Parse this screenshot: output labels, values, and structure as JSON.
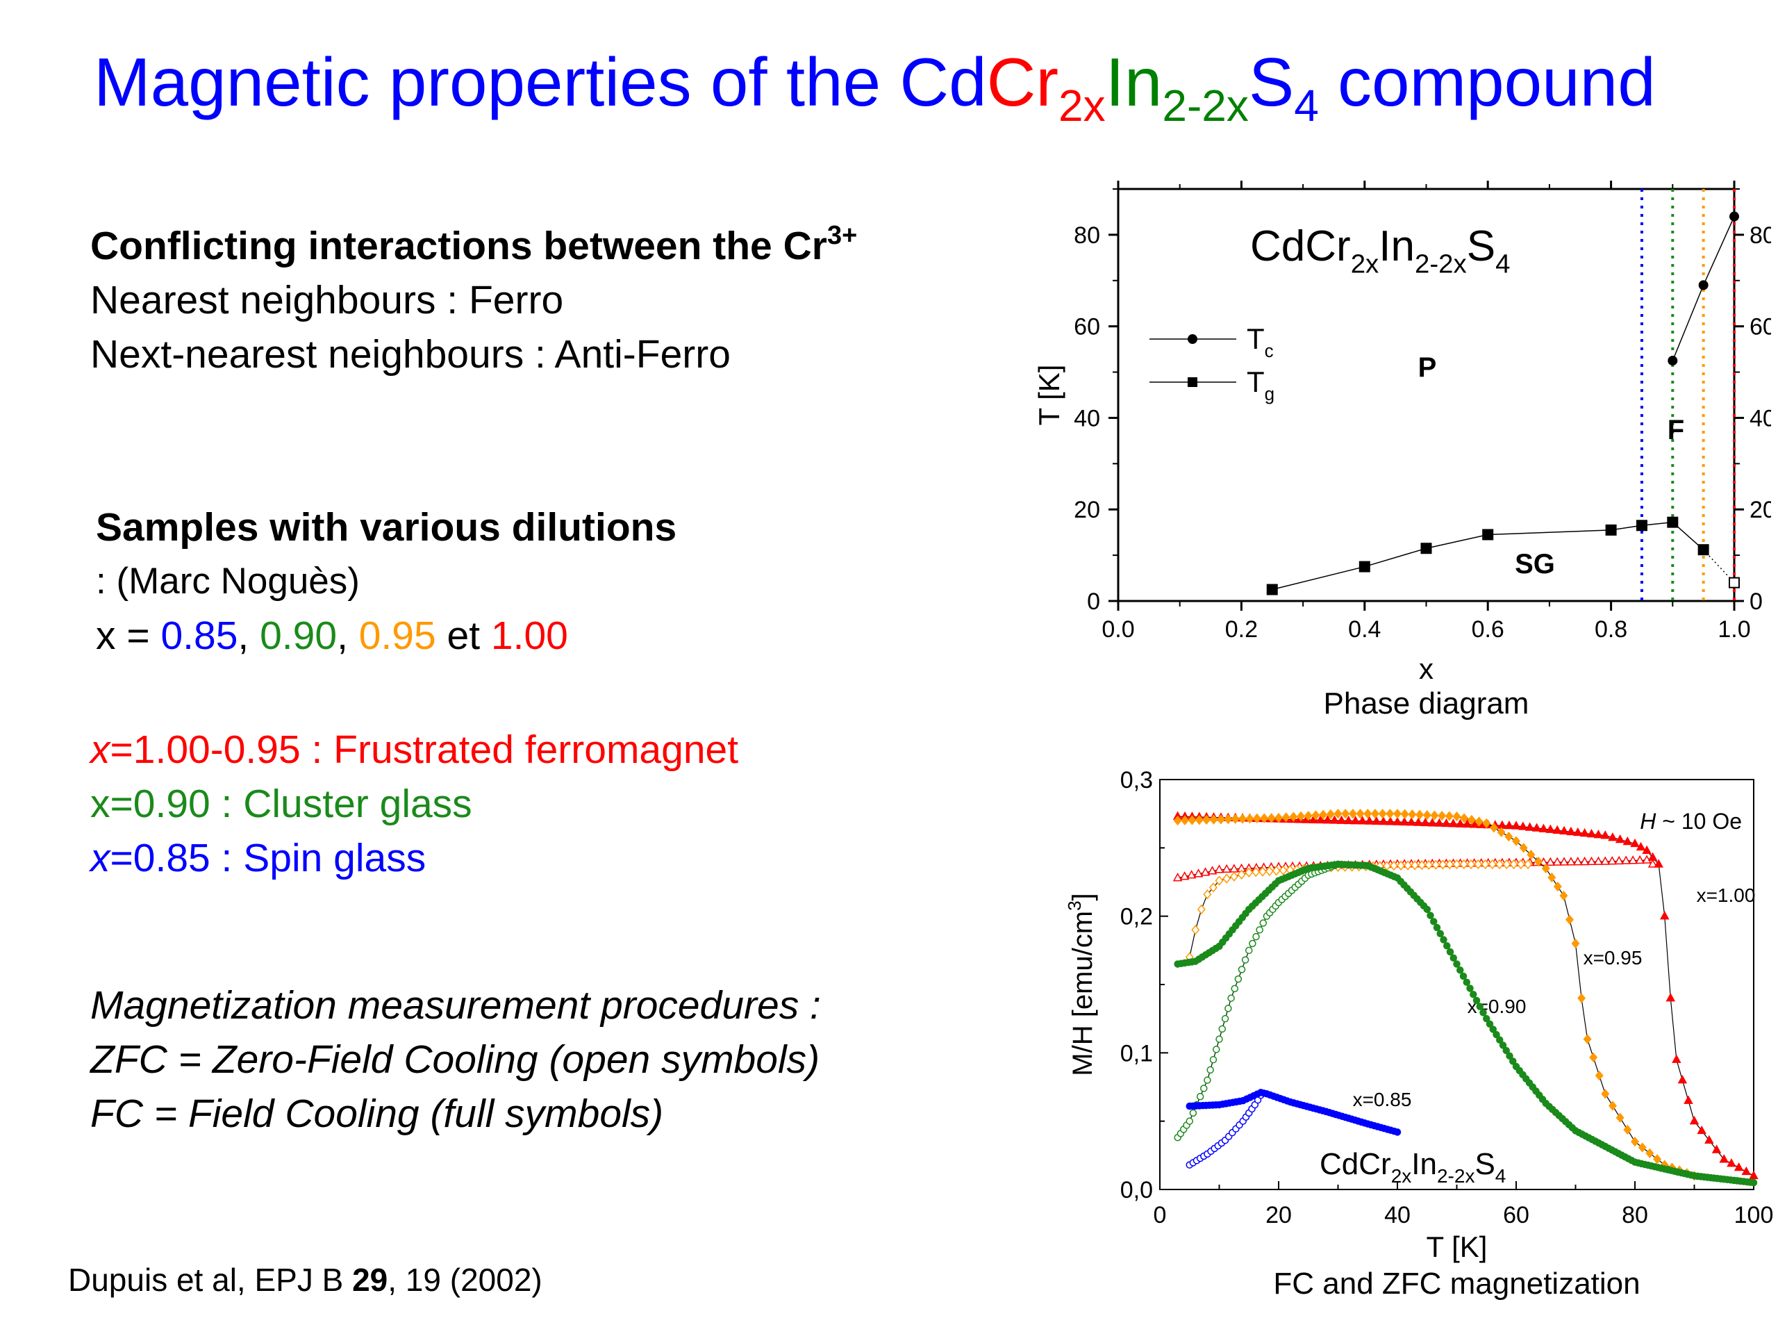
{
  "title": {
    "prefix": "Magnetic properties of the ",
    "cd": "Cd",
    "cr": "Cr",
    "cr_sub": "2x",
    "in": "In",
    "in_sub": "2-2x",
    "s": "S",
    "s_sub": "4",
    "suffix": " compound"
  },
  "left": {
    "conflict_heading": "Conflicting interactions between the Cr",
    "conflict_sup": "3+",
    "nn": "Nearest neighbours : Ferro",
    "nnn": "Next-nearest neighbours : Anti-Ferro",
    "samples_heading": "Samples with various dilutions",
    "samples_author": ": (Marc Noguès)",
    "x_prefix": "x = ",
    "x_values": [
      "0.85",
      "0.90",
      "0.95",
      "1.00"
    ],
    "x_sep": ", ",
    "x_et": " et ",
    "line_frustrated_var": "x",
    "line_frustrated": "=1.00-0.95 :  Frustrated ferromagnet",
    "line_cluster": "x=0.90 : Cluster glass",
    "line_spin_var": "x",
    "line_spin": "=0.85 : Spin glass",
    "proc_heading": "Magnetization measurement procedures :",
    "proc_zfc": "ZFC = Zero-Field Cooling (open symbols)",
    "proc_fc": "FC = Field Cooling (full symbols)",
    "ref_prefix": "Dupuis et al, EPJ B ",
    "ref_vol": "29",
    "ref_suffix": ", 19 (2002)"
  },
  "colors": {
    "x085": "#0000ff",
    "x090": "#1a8a1a",
    "x095": "#ff9900",
    "x100": "#ff0000"
  },
  "chart_data": [
    {
      "type": "line",
      "caption": "Phase diagram",
      "xlabel": "x",
      "ylabel": "T [K]",
      "xlim": [
        0.0,
        1.0
      ],
      "ylim": [
        0,
        90
      ],
      "xticks": [
        "0.0",
        "0.2",
        "0.4",
        "0.6",
        "0.8",
        "1.0"
      ],
      "yticks": [
        "0",
        "20",
        "40",
        "60",
        "80"
      ],
      "inner_title": {
        "base": "CdCr",
        "sub1": "2x",
        "mid": "In",
        "sub2": "2-2x",
        "end": "S",
        "sub3": "4"
      },
      "legend": [
        {
          "name": "T",
          "sub": "c",
          "marker": "circle"
        },
        {
          "name": "T",
          "sub": "g",
          "marker": "square"
        }
      ],
      "region_labels": [
        "P",
        "F",
        "SG"
      ],
      "series": [
        {
          "name": "Tc",
          "x": [
            0.9,
            0.95,
            1.0
          ],
          "y": [
            52.5,
            69,
            84
          ]
        },
        {
          "name": "Tg",
          "x": [
            0.25,
            0.4,
            0.5,
            0.6,
            0.8,
            0.85,
            0.9,
            0.95,
            1.0
          ],
          "y": [
            2.5,
            7.5,
            11.5,
            14.5,
            15.5,
            16.5,
            17.2,
            11.2,
            4
          ]
        }
      ],
      "vlines": [
        0.85,
        0.9,
        0.95,
        1.0
      ]
    },
    {
      "type": "scatter",
      "caption": "FC and ZFC magnetization",
      "xlabel": "T [K]",
      "ylabel": "M/H [emu/cm",
      "ylabel_sup": "3",
      "ylabel_end": "]",
      "xlim": [
        0,
        100
      ],
      "ylim": [
        0,
        0.3
      ],
      "xticks": [
        "0",
        "20",
        "40",
        "60",
        "80",
        "100"
      ],
      "yticks": [
        "0,0",
        "0,1",
        "0,2",
        "0,3"
      ],
      "field_label": {
        "var": "H",
        "text": " ~ 10 Oe"
      },
      "inner_title": {
        "base": "CdCr",
        "sub1": "2x",
        "mid": "In",
        "sub2": "2-2x",
        "end": "S",
        "sub3": "4"
      },
      "series_labels": [
        "x=1.00",
        "x=0.95",
        "x=0.90",
        "x=0.85"
      ],
      "series": [
        {
          "name": "x=1.00",
          "fc": [
            [
              3,
              0.273
            ],
            [
              20,
              0.271
            ],
            [
              40,
              0.269
            ],
            [
              60,
              0.266
            ],
            [
              75,
              0.259
            ],
            [
              80,
              0.253
            ],
            [
              82,
              0.248
            ],
            [
              84,
              0.238
            ],
            [
              85,
              0.2
            ],
            [
              86,
              0.14
            ],
            [
              87,
              0.095
            ],
            [
              90,
              0.05
            ],
            [
              95,
              0.022
            ],
            [
              100,
              0.01
            ]
          ],
          "zfc": [
            [
              3,
              0.228
            ],
            [
              10,
              0.234
            ],
            [
              20,
              0.236
            ],
            [
              40,
              0.238
            ],
            [
              60,
              0.239
            ],
            [
              75,
              0.24
            ],
            [
              82,
              0.241
            ],
            [
              83,
              0.238
            ]
          ]
        },
        {
          "name": "x=0.95",
          "fc": [
            [
              3,
              0.27
            ],
            [
              20,
              0.272
            ],
            [
              30,
              0.275
            ],
            [
              40,
              0.275
            ],
            [
              50,
              0.273
            ],
            [
              55,
              0.268
            ],
            [
              60,
              0.255
            ],
            [
              65,
              0.235
            ],
            [
              68,
              0.215
            ],
            [
              70,
              0.18
            ],
            [
              71,
              0.14
            ],
            [
              72,
              0.11
            ],
            [
              75,
              0.07
            ],
            [
              80,
              0.035
            ],
            [
              85,
              0.018
            ],
            [
              90,
              0.01
            ]
          ],
          "zfc": [
            [
              5,
              0.17
            ],
            [
              6,
              0.19
            ],
            [
              7,
              0.205
            ],
            [
              8,
              0.216
            ],
            [
              10,
              0.226
            ],
            [
              15,
              0.232
            ],
            [
              30,
              0.236
            ],
            [
              50,
              0.238
            ],
            [
              62,
              0.238
            ]
          ]
        },
        {
          "name": "x=0.90",
          "fc": [
            [
              3,
              0.165
            ],
            [
              6,
              0.167
            ],
            [
              10,
              0.178
            ],
            [
              15,
              0.205
            ],
            [
              20,
              0.226
            ],
            [
              25,
              0.235
            ],
            [
              30,
              0.238
            ],
            [
              35,
              0.237
            ],
            [
              40,
              0.228
            ],
            [
              45,
              0.205
            ],
            [
              50,
              0.165
            ],
            [
              55,
              0.125
            ],
            [
              60,
              0.09
            ],
            [
              65,
              0.063
            ],
            [
              70,
              0.043
            ],
            [
              80,
              0.02
            ],
            [
              90,
              0.01
            ],
            [
              100,
              0.005
            ]
          ],
          "zfc": [
            [
              3,
              0.038
            ],
            [
              5,
              0.05
            ],
            [
              8,
              0.08
            ],
            [
              10,
              0.11
            ],
            [
              12,
              0.14
            ],
            [
              15,
              0.175
            ],
            [
              18,
              0.2
            ],
            [
              20,
              0.21
            ],
            [
              25,
              0.23
            ],
            [
              30,
              0.238
            ]
          ]
        },
        {
          "name": "x=0.85",
          "fc": [
            [
              5,
              0.061
            ],
            [
              10,
              0.062
            ],
            [
              14,
              0.065
            ],
            [
              17,
              0.071
            ],
            [
              18,
              0.07
            ],
            [
              22,
              0.064
            ],
            [
              28,
              0.057
            ],
            [
              35,
              0.048
            ],
            [
              40,
              0.042
            ]
          ],
          "zfc": [
            [
              5,
              0.018
            ],
            [
              8,
              0.026
            ],
            [
              11,
              0.036
            ],
            [
              14,
              0.05
            ],
            [
              16,
              0.062
            ],
            [
              17,
              0.069
            ]
          ]
        }
      ]
    }
  ]
}
